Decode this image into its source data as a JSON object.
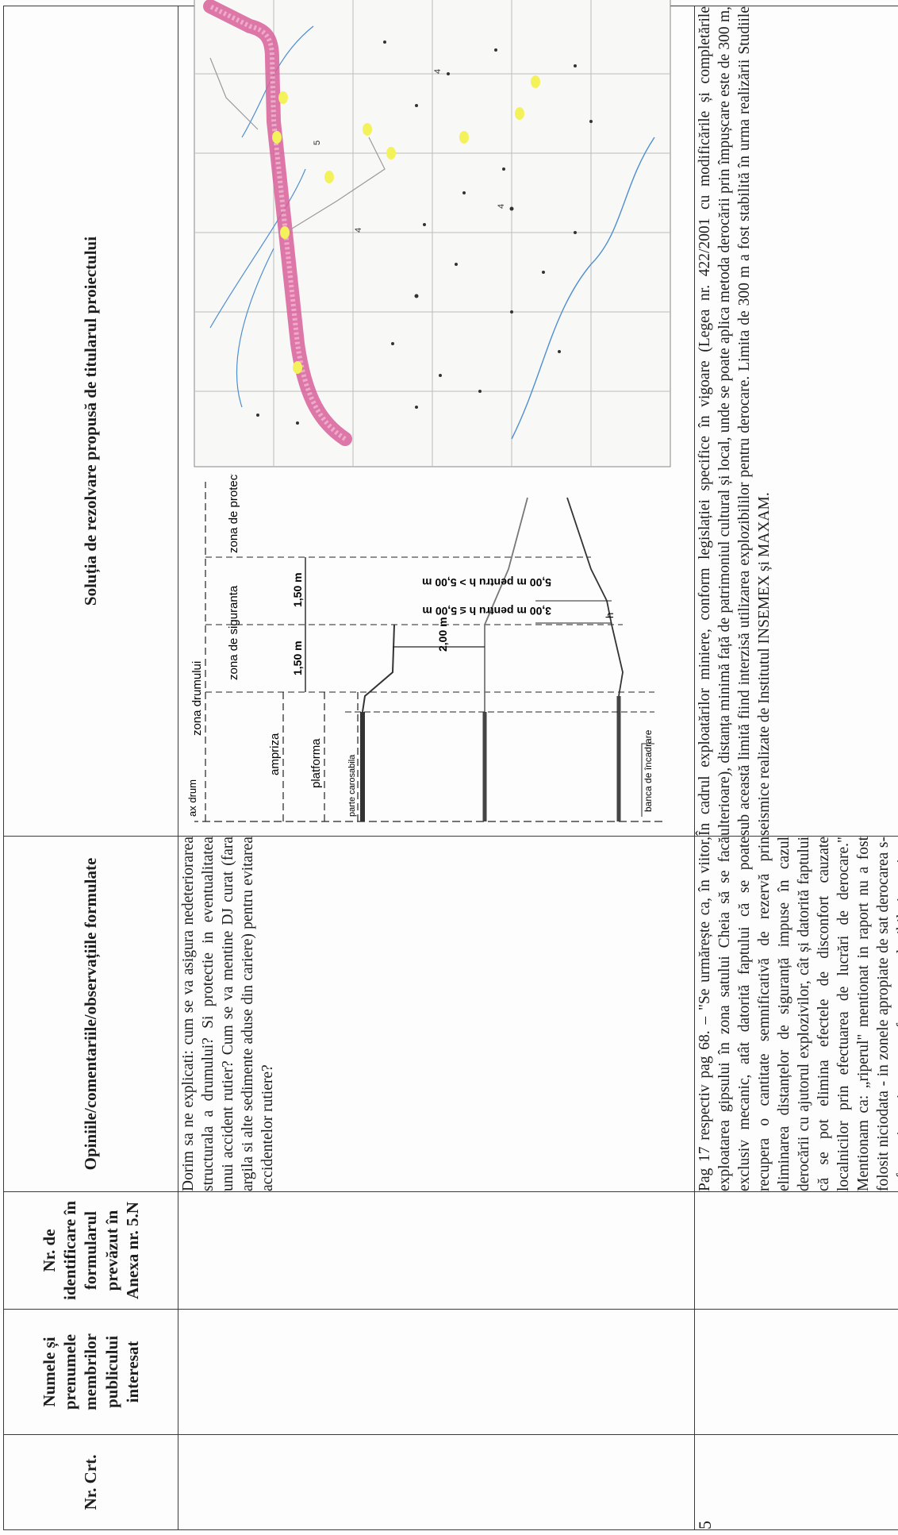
{
  "headers": {
    "col1": "Nr. Crt.",
    "col2": "Numele și prenumele membrilor publicului interesat",
    "col3": "Nr. de identificare în formularul prevăzut în Anexa nr. 5.N",
    "col4": "Opiniile/comentariile/observațiile formulate",
    "col5": "Soluția de rezolvare propusă de titularul proiectului"
  },
  "rows": [
    {
      "nr": "",
      "comment": "Dorim sa ne explicati: cum se va asigura nedeteriorarea structurala a drumului? Si protectie in eventualitatea unui accident rutier? Cum se va mentine DJ curat (fara argila si alte sedimente aduse din cariere) pentru evitarea accidentelor rutiere?"
    },
    {
      "nr": "5",
      "comment": "Pag 17 respectiv pag 68. – \"Se urmărește ca, în viitor, exploatarea gipsului în zona satului Cheia să se facă exclusiv mecanic, atât datorită faptului că se poate recupera o cantitate semnificativă de rezervă prin eliminarea distanțelor de siguranță impuse în cazul derocării cu ajutorul explozivilor, cât și datorită faptului că se pot elimina efectele de disconfort cauzate localnicilor prin efectuarea de lucrări de derocare.\" Mentionam ca: „riperul\" mentionat in raport nu a fost folosit niciodata - in zonele apropiate de sat derocarea s-a facut si continua sa se faca cu explozibil si cu picon mecanic – la folosirea explozibilului efectiv se zguduie casele",
      "solution": "În cadrul exploatărilor miniere, conform legislației specifice în vigoare (Legea nr. 422/2001 cu modificările și completările ulterioare), distanța minimă față de patrimoniul cultural și local, unde se poate aplica metoda derocării prin împușcare este de 300 m, sub această limită fiind interzisă utilizarea explozibililor pentru derocare. Limita de 300 m a fost stabilită în urma realizării Studiile seismice realizate de Institutul INSEMEX și MAXAM."
    }
  ],
  "road_section": {
    "ax": "ax drum",
    "zona_drumului": "zona drumului",
    "ampriza": "ampriza",
    "platforma": "platforma",
    "parte_carosabila": "parte carosabila",
    "zona_siguranta": "zona de siguranta",
    "zona_protectie": "zona de protectie",
    "d1": "1,50 m",
    "d2": "1,50 m",
    "d3": "2,00 m",
    "d4": "3,00 m pentru h ≤ 5,00 m",
    "d5": "5,00 m pentru h > 5,00 m",
    "h": "h",
    "banca": "banca de încadrare"
  },
  "map_labels": {
    "n1": "5",
    "n2": "4",
    "n3": "4",
    "n4": "4"
  },
  "colors": {
    "route": "#d8609a",
    "marker": "#f4f25a",
    "river": "#4f8fd0"
  }
}
